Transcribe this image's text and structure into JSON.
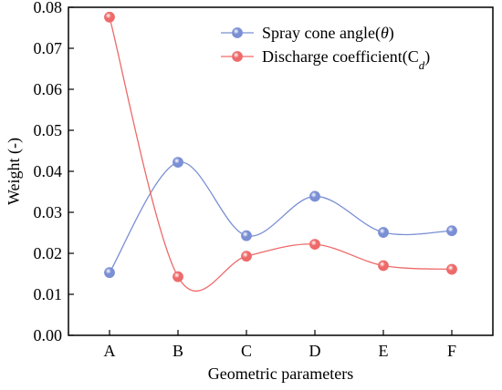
{
  "chart_data": {
    "type": "line",
    "title": "",
    "xlabel": "Geometric parameters",
    "ylabel": "Weight (-)",
    "categories": [
      "A",
      "B",
      "C",
      "D",
      "E",
      "F"
    ],
    "ylim": [
      0.0,
      0.08
    ],
    "yticks": [
      "0.00",
      "0.01",
      "0.02",
      "0.03",
      "0.04",
      "0.05",
      "0.06",
      "0.07",
      "0.08"
    ],
    "grid": false,
    "legend_position": "top-right",
    "series": [
      {
        "name": "Spray cone angle(θ)",
        "name_parts": [
          "Spray cone angle(",
          "θ",
          ")"
        ],
        "values": [
          0.0153,
          0.0422,
          0.0243,
          0.0339,
          0.0251,
          0.0255
        ],
        "color": "#7a8fd4"
      },
      {
        "name": "Discharge coefficient(Cd)",
        "name_parts": [
          "Discharge coefficient(C",
          "d",
          ")"
        ],
        "values": [
          0.0776,
          0.0143,
          0.0193,
          0.0222,
          0.017,
          0.0161
        ],
        "color": "#ee6a6a"
      }
    ]
  }
}
